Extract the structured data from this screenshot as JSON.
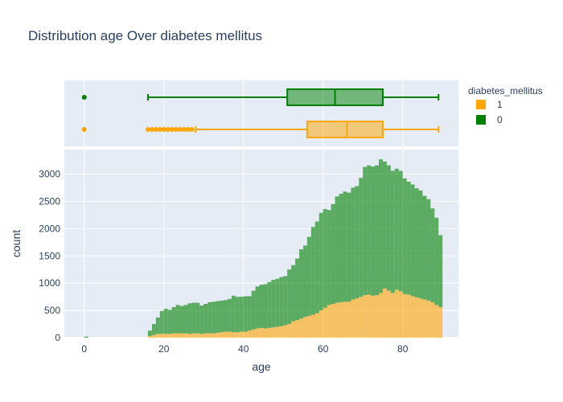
{
  "chart_data": {
    "type": "histogram_with_boxplot",
    "title": "Distribution age Over diabetes mellitus",
    "xlabel": "age",
    "ylabel": "count",
    "xlim": [
      -5,
      94
    ],
    "ylim": [
      0,
      3450
    ],
    "x_ticks": [
      0,
      20,
      40,
      60,
      80
    ],
    "y_ticks": [
      0,
      500,
      1000,
      1500,
      2000,
      2500,
      3000
    ],
    "legend": {
      "title": "diabetes_mellitus",
      "placement": "top-right",
      "items": [
        {
          "label": "1",
          "color": "#FFA500"
        },
        {
          "label": "0",
          "color": "#008000"
        }
      ]
    },
    "histogram": {
      "barmode": "stack",
      "bins_start": [
        0,
        16,
        17,
        18,
        19,
        20,
        21,
        22,
        23,
        24,
        25,
        26,
        27,
        28,
        29,
        30,
        31,
        32,
        33,
        34,
        35,
        36,
        37,
        38,
        39,
        40,
        41,
        42,
        43,
        44,
        45,
        46,
        47,
        48,
        49,
        50,
        51,
        52,
        53,
        54,
        55,
        56,
        57,
        58,
        59,
        60,
        61,
        62,
        63,
        64,
        65,
        66,
        67,
        68,
        69,
        70,
        71,
        72,
        73,
        74,
        75,
        76,
        77,
        78,
        79,
        80,
        81,
        82,
        83,
        84,
        85,
        86,
        87,
        88,
        89
      ],
      "series": [
        {
          "name": "1",
          "color": "#FFA500",
          "values": [
            0,
            30,
            50,
            70,
            70,
            70,
            70,
            80,
            80,
            80,
            80,
            70,
            80,
            80,
            70,
            80,
            80,
            80,
            90,
            100,
            110,
            110,
            100,
            100,
            110,
            110,
            130,
            150,
            170,
            180,
            170,
            180,
            190,
            200,
            210,
            230,
            250,
            300,
            320,
            350,
            380,
            400,
            420,
            450,
            500,
            550,
            600,
            620,
            640,
            650,
            660,
            660,
            700,
            720,
            750,
            780,
            790,
            770,
            780,
            820,
            900,
            860,
            820,
            880,
            850,
            800,
            790,
            760,
            740,
            720,
            700,
            680,
            650,
            600,
            560
          ]
        },
        {
          "name": "0",
          "color": "#008000",
          "values": [
            20,
            100,
            200,
            300,
            420,
            460,
            440,
            480,
            520,
            500,
            520,
            560,
            560,
            560,
            520,
            540,
            570,
            580,
            580,
            580,
            580,
            600,
            670,
            650,
            640,
            650,
            630,
            710,
            770,
            790,
            810,
            840,
            870,
            880,
            900,
            900,
            1000,
            1030,
            1130,
            1270,
            1310,
            1450,
            1610,
            1680,
            1790,
            1810,
            1740,
            1830,
            1950,
            1990,
            2020,
            2000,
            2050,
            2060,
            2180,
            2350,
            2370,
            2370,
            2380,
            2450,
            2330,
            2300,
            2240,
            2220,
            2210,
            2120,
            2070,
            2050,
            2000,
            1980,
            1900,
            1860,
            1720,
            1600,
            1320
          ]
        }
      ]
    },
    "boxplots": [
      {
        "name": "0",
        "color": "#008000",
        "min": 16,
        "q1": 51,
        "median": 63,
        "q3": 75,
        "max": 89,
        "outliers": [
          0
        ]
      },
      {
        "name": "1",
        "color": "#FFA500",
        "min": 28,
        "q1": 56,
        "median": 66,
        "q3": 75,
        "max": 89,
        "outliers": [
          0,
          16,
          17,
          18,
          19,
          20,
          21,
          22,
          23,
          24,
          25,
          26,
          27
        ]
      }
    ]
  }
}
